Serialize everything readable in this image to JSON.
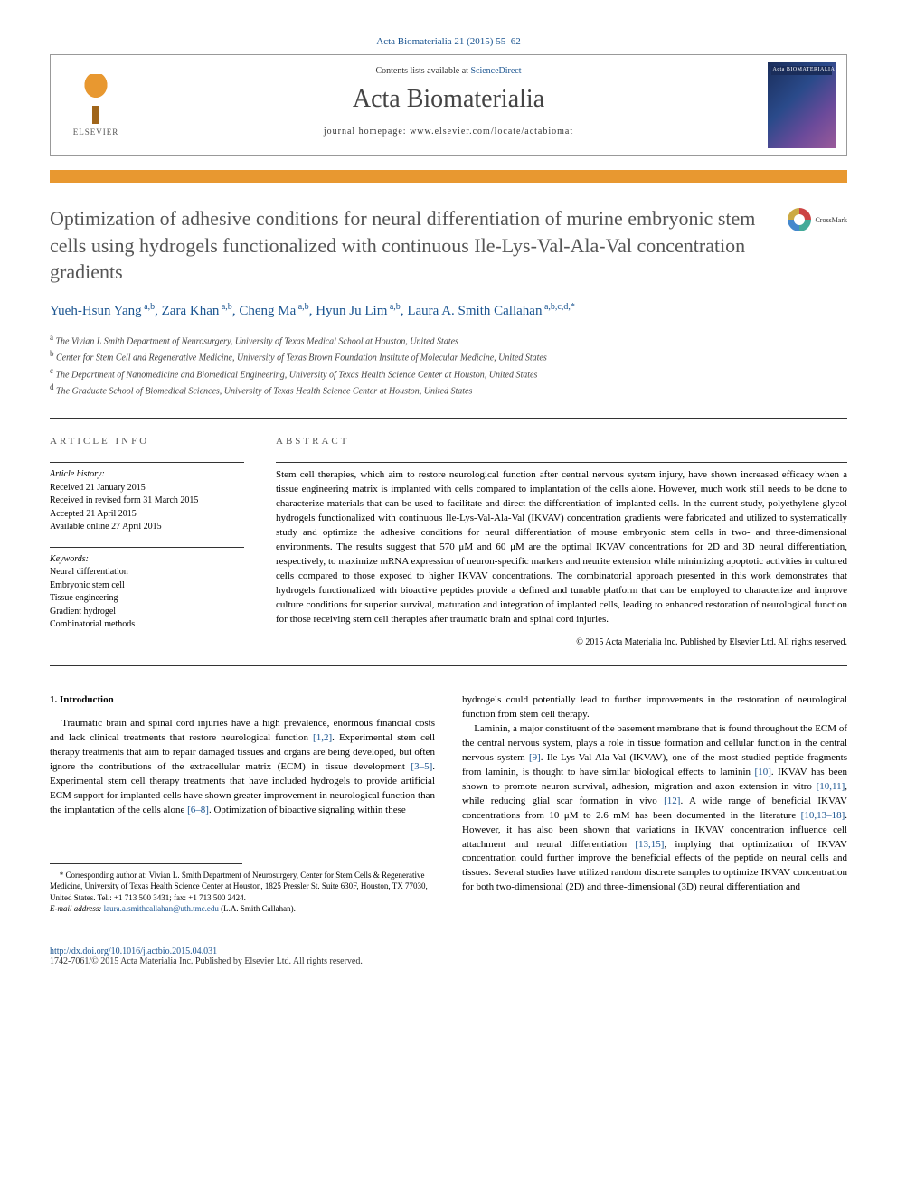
{
  "header": {
    "citation": "Acta Biomaterialia 21 (2015) 55–62",
    "contents_prefix": "Contents lists available at ",
    "contents_link": "ScienceDirect",
    "journal": "Acta Biomaterialia",
    "homepage_label": "journal homepage: ",
    "homepage_url": "www.elsevier.com/locate/actabiomat",
    "publisher": "ELSEVIER",
    "cover_label": "Acta BIOMATERIALIA"
  },
  "crossmark": {
    "label": "CrossMark"
  },
  "title": "Optimization of adhesive conditions for neural differentiation of murine embryonic stem cells using hydrogels functionalized with continuous Ile-Lys-Val-Ala-Val concentration gradients",
  "authors": [
    {
      "name": "Yueh-Hsun Yang",
      "aff": "a,b"
    },
    {
      "name": "Zara Khan",
      "aff": "a,b"
    },
    {
      "name": "Cheng Ma",
      "aff": "a,b"
    },
    {
      "name": "Hyun Ju Lim",
      "aff": "a,b"
    },
    {
      "name": "Laura A. Smith Callahan",
      "aff": "a,b,c,d,*"
    }
  ],
  "affiliations": [
    {
      "sup": "a",
      "text": "The Vivian L Smith Department of Neurosurgery, University of Texas Medical School at Houston, United States"
    },
    {
      "sup": "b",
      "text": "Center for Stem Cell and Regenerative Medicine, University of Texas Brown Foundation Institute of Molecular Medicine, United States"
    },
    {
      "sup": "c",
      "text": "The Department of Nanomedicine and Biomedical Engineering, University of Texas Health Science Center at Houston, United States"
    },
    {
      "sup": "d",
      "text": "The Graduate School of Biomedical Sciences, University of Texas Health Science Center at Houston, United States"
    }
  ],
  "info": {
    "heading": "ARTICLE INFO",
    "history_label": "Article history:",
    "history": [
      "Received 21 January 2015",
      "Received in revised form 31 March 2015",
      "Accepted 21 April 2015",
      "Available online 27 April 2015"
    ],
    "keywords_label": "Keywords:",
    "keywords": [
      "Neural differentiation",
      "Embryonic stem cell",
      "Tissue engineering",
      "Gradient hydrogel",
      "Combinatorial methods"
    ]
  },
  "abstract": {
    "heading": "ABSTRACT",
    "body": "Stem cell therapies, which aim to restore neurological function after central nervous system injury, have shown increased efficacy when a tissue engineering matrix is implanted with cells compared to implantation of the cells alone. However, much work still needs to be done to characterize materials that can be used to facilitate and direct the differentiation of implanted cells. In the current study, polyethylene glycol hydrogels functionalized with continuous Ile-Lys-Val-Ala-Val (IKVAV) concentration gradients were fabricated and utilized to systematically study and optimize the adhesive conditions for neural differentiation of mouse embryonic stem cells in two- and three-dimensional environments. The results suggest that 570 μM and 60 μM are the optimal IKVAV concentrations for 2D and 3D neural differentiation, respectively, to maximize mRNA expression of neuron-specific markers and neurite extension while minimizing apoptotic activities in cultured cells compared to those exposed to higher IKVAV concentrations. The combinatorial approach presented in this work demonstrates that hydrogels functionalized with bioactive peptides provide a defined and tunable platform that can be employed to characterize and improve culture conditions for superior survival, maturation and integration of implanted cells, leading to enhanced restoration of neurological function for those receiving stem cell therapies after traumatic brain and spinal cord injuries.",
    "copyright": "© 2015 Acta Materialia Inc. Published by Elsevier Ltd. All rights reserved."
  },
  "body": {
    "section_heading": "1. Introduction",
    "left_paras": [
      "Traumatic brain and spinal cord injuries have a high prevalence, enormous financial costs and lack clinical treatments that restore neurological function [1,2]. Experimental stem cell therapy treatments that aim to repair damaged tissues and organs are being developed, but often ignore the contributions of the extracellular matrix (ECM) in tissue development [3–5]. Experimental stem cell therapy treatments that have included hydrogels to provide artificial ECM support for implanted cells have shown greater improvement in neurological function than the implantation of the cells alone [6–8]. Optimization of bioactive signaling within these"
    ],
    "right_paras": [
      "hydrogels could potentially lead to further improvements in the restoration of neurological function from stem cell therapy.",
      "Laminin, a major constituent of the basement membrane that is found throughout the ECM of the central nervous system, plays a role in tissue formation and cellular function in the central nervous system [9]. Ile-Lys-Val-Ala-Val (IKVAV), one of the most studied peptide fragments from laminin, is thought to have similar biological effects to laminin [10]. IKVAV has been shown to promote neuron survival, adhesion, migration and axon extension in vitro [10,11], while reducing glial scar formation in vivo [12]. A wide range of beneficial IKVAV concentrations from 10 μM to 2.6 mM has been documented in the literature [10,13–18]. However, it has also been shown that variations in IKVAV concentration influence cell attachment and neural differentiation [13,15], implying that optimization of IKVAV concentration could further improve the beneficial effects of the peptide on neural cells and tissues. Several studies have utilized random discrete samples to optimize IKVAV concentration for both two-dimensional (2D) and three-dimensional (3D) neural differentiation and"
    ],
    "refs": {
      "r1": "[1,2]",
      "r2": "[3–5]",
      "r3": "[6–8]",
      "r4": "[9]",
      "r5": "[10]",
      "r6": "[10,11]",
      "r7": "[12]",
      "r8": "[10,13–18]",
      "r9": "[13,15]"
    }
  },
  "footnote": {
    "corr": "* Corresponding author at: Vivian L. Smith Department of Neurosurgery, Center for Stem Cells & Regenerative Medicine, University of Texas Health Science Center at Houston, 1825 Pressler St. Suite 630F, Houston, TX 77030, United States. Tel.: +1 713 500 3431; fax: +1 713 500 2424.",
    "email_label": "E-mail address: ",
    "email": "laura.a.smithcallahan@uth.tmc.edu",
    "email_who": " (L.A. Smith Callahan)."
  },
  "footer": {
    "doi": "http://dx.doi.org/10.1016/j.actbio.2015.04.031",
    "issn_copy": "1742-7061/© 2015 Acta Materialia Inc. Published by Elsevier Ltd. All rights reserved."
  },
  "colors": {
    "link": "#1a5490",
    "bar": "#e89830"
  }
}
